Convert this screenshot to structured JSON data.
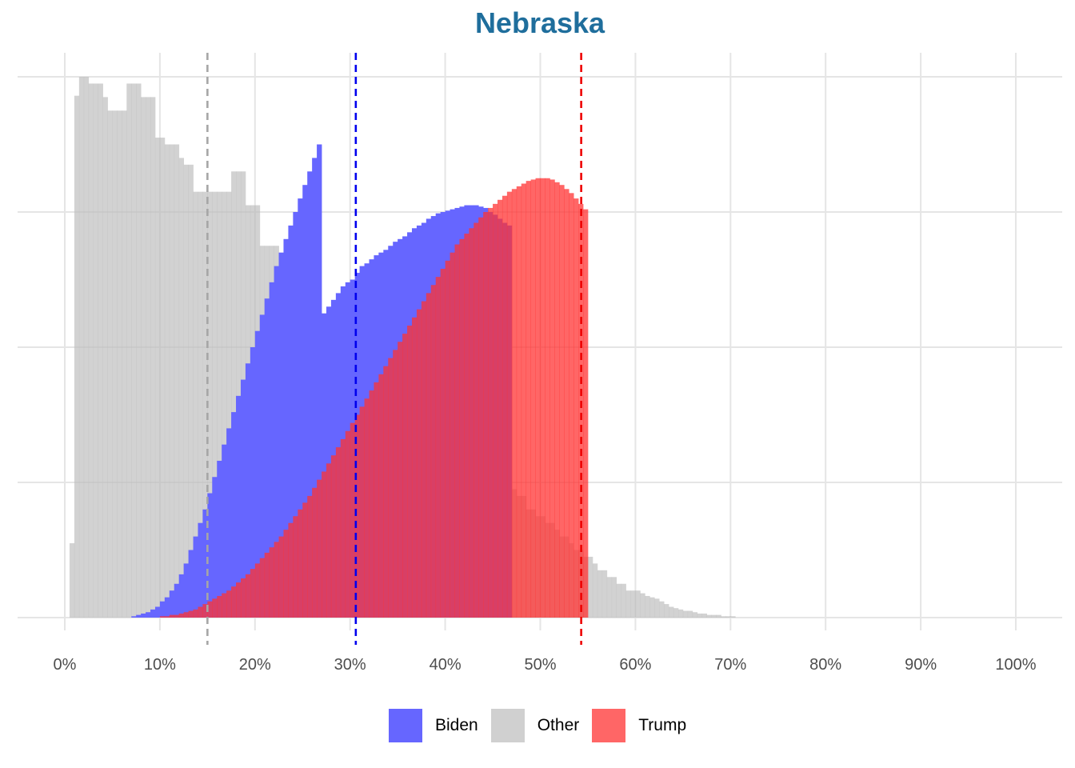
{
  "chart_data": {
    "type": "histogram",
    "title": "Nebraska",
    "xlabel": "",
    "ylabel": "",
    "x_unit": "percent",
    "xlim": [
      -5,
      105
    ],
    "ylim": [
      -0.2,
      5.1
    ],
    "x_ticks": [
      0,
      10,
      20,
      30,
      40,
      50,
      60,
      70,
      80,
      90,
      100
    ],
    "x_tick_labels": [
      "0%",
      "10%",
      "20%",
      "30%",
      "40%",
      "50%",
      "60%",
      "70%",
      "80%",
      "90%",
      "100%"
    ],
    "y_gridlines": [
      0,
      1,
      2,
      3,
      4
    ],
    "y_tick_labels_shown": false,
    "grid": true,
    "bin_width_percent": 0.5,
    "bin_start_percent": 0.5,
    "series": [
      {
        "name": "Other",
        "color": "#bfbfbf",
        "opacity": 0.7,
        "mean_percent": 15.0,
        "mean_line_color": "#a6a6a6",
        "bin_counts": [
          0.55,
          3.86,
          4.0,
          4.0,
          3.95,
          3.95,
          3.95,
          3.85,
          3.75,
          3.75,
          3.75,
          3.75,
          3.95,
          3.95,
          3.95,
          3.85,
          3.85,
          3.85,
          3.55,
          3.55,
          3.5,
          3.5,
          3.5,
          3.4,
          3.35,
          3.35,
          3.15,
          3.15,
          3.15,
          3.15,
          3.15,
          3.15,
          3.15,
          3.15,
          3.3,
          3.3,
          3.3,
          3.05,
          3.05,
          3.05,
          2.75,
          2.75,
          2.75,
          2.75,
          2.6,
          2.6,
          2.6,
          2.6,
          2.6,
          2.5,
          2.5,
          2.25,
          2.25,
          2.25,
          2.2,
          2.2,
          2.2,
          2.0,
          2.0,
          2.0,
          1.94,
          1.94,
          1.94,
          1.84,
          1.84,
          1.84,
          1.75,
          1.75,
          1.75,
          1.65,
          1.65,
          1.65,
          1.6,
          1.6,
          1.6,
          1.5,
          1.5,
          1.5,
          1.45,
          1.45,
          1.45,
          1.35,
          1.35,
          1.25,
          1.25,
          1.2,
          1.2,
          1.2,
          1.1,
          1.1,
          1.05,
          1.05,
          0.95,
          0.95,
          0.9,
          0.9,
          0.8,
          0.8,
          0.75,
          0.75,
          0.7,
          0.7,
          0.65,
          0.6,
          0.6,
          0.55,
          0.5,
          0.5,
          0.45,
          0.45,
          0.4,
          0.35,
          0.35,
          0.3,
          0.3,
          0.25,
          0.25,
          0.2,
          0.2,
          0.2,
          0.18,
          0.16,
          0.15,
          0.14,
          0.12,
          0.1,
          0.08,
          0.07,
          0.06,
          0.05,
          0.05,
          0.04,
          0.03,
          0.03,
          0.02,
          0.02,
          0.02,
          0.01,
          0.01,
          0.01
        ]
      },
      {
        "name": "Biden",
        "color": "#6666ff",
        "opacity": 1.0,
        "mean_percent": 30.6,
        "mean_line_color": "#0000ee",
        "bin_counts": [
          0.01,
          0.02,
          0.03,
          0.04,
          0.06,
          0.08,
          0.12,
          0.15,
          0.2,
          0.25,
          0.32,
          0.4,
          0.5,
          0.6,
          0.7,
          0.8,
          0.92,
          1.04,
          1.16,
          1.28,
          1.4,
          1.52,
          1.64,
          1.76,
          1.88,
          2.0,
          2.12,
          2.24,
          2.36,
          2.48,
          2.6,
          2.7,
          2.8,
          2.9,
          3.0,
          3.1,
          3.2,
          3.3,
          3.4,
          3.5,
          2.25,
          2.3,
          2.35,
          2.4,
          2.45,
          2.48,
          2.5,
          2.55,
          2.6,
          2.62,
          2.65,
          2.68,
          2.7,
          2.72,
          2.75,
          2.78,
          2.8,
          2.82,
          2.85,
          2.88,
          2.9,
          2.92,
          2.95,
          2.97,
          2.99,
          3.0,
          3.01,
          3.02,
          3.03,
          3.04,
          3.05,
          3.05,
          3.05,
          3.04,
          3.03,
          3.0,
          2.98,
          2.95,
          2.92,
          2.9
        ]
      },
      {
        "name": "Trump",
        "color": "#ff3333",
        "opacity": 0.75,
        "mean_percent": 54.3,
        "mean_line_color": "#ee0000",
        "bin_counts": [
          0.01,
          0.01,
          0.02,
          0.02,
          0.03,
          0.04,
          0.05,
          0.06,
          0.08,
          0.1,
          0.12,
          0.14,
          0.16,
          0.18,
          0.2,
          0.23,
          0.26,
          0.29,
          0.32,
          0.36,
          0.4,
          0.44,
          0.48,
          0.52,
          0.56,
          0.6,
          0.65,
          0.7,
          0.75,
          0.8,
          0.85,
          0.9,
          0.96,
          1.02,
          1.08,
          1.14,
          1.2,
          1.26,
          1.32,
          1.38,
          1.44,
          1.5,
          1.56,
          1.62,
          1.68,
          1.74,
          1.8,
          1.86,
          1.92,
          1.98,
          2.04,
          2.1,
          2.16,
          2.22,
          2.28,
          2.34,
          2.4,
          2.46,
          2.52,
          2.58,
          2.64,
          2.7,
          2.76,
          2.8,
          2.84,
          2.88,
          2.92,
          2.96,
          3.0,
          3.03,
          3.06,
          3.09,
          3.12,
          3.15,
          3.17,
          3.19,
          3.21,
          3.23,
          3.24,
          3.25,
          3.25,
          3.25,
          3.24,
          3.22,
          3.2,
          3.17,
          3.14,
          3.1,
          3.06,
          3.02
        ]
      }
    ],
    "legend": {
      "position": "bottom",
      "entries": [
        {
          "label": "Biden",
          "color": "#6666ff"
        },
        {
          "label": "Other",
          "color": "#d0d0d0"
        },
        {
          "label": "Trump",
          "color": "#ff6666"
        }
      ]
    }
  }
}
